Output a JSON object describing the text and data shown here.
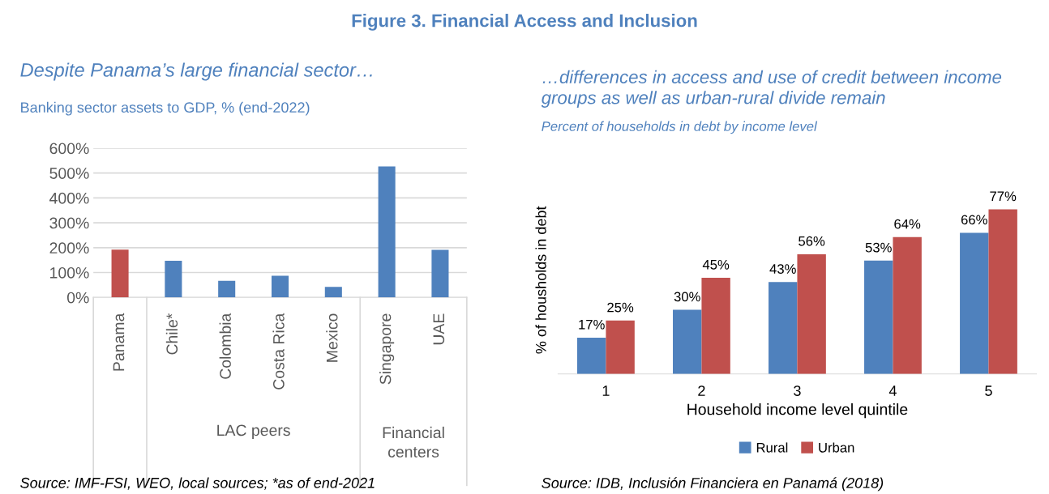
{
  "chart_data": [
    {
      "type": "bar",
      "title": "Despite Panama’s large financial sector…",
      "subtitle": "Banking sector assets to GDP, % (end-2022)",
      "categories": [
        "Panama",
        "Chile*",
        "Colombia",
        "Costa Rica",
        "Mexico",
        "Singapore",
        "UAE"
      ],
      "values": [
        192,
        147,
        67,
        87,
        42,
        527,
        191
      ],
      "colors": [
        "#c0504d",
        "#4f81bd",
        "#4f81bd",
        "#4f81bd",
        "#4f81bd",
        "#4f81bd",
        "#4f81bd"
      ],
      "ylim": [
        0,
        600
      ],
      "yticks": [
        {
          "value": 0,
          "label": "0%"
        },
        {
          "value": 100,
          "label": "100%"
        },
        {
          "value": 200,
          "label": "200%"
        },
        {
          "value": 300,
          "label": "300%"
        },
        {
          "value": 400,
          "label": "400%"
        },
        {
          "value": 500,
          "label": "500%"
        },
        {
          "value": 600,
          "label": "600%"
        }
      ],
      "grid": "y",
      "annotations": [
        "Figure 3. Financial Access and Inclusion",
        "LAC peers",
        "Financial centers",
        "Source: IMF-FSI, WEO, local sources; *as of end-2021"
      ]
    },
    {
      "type": "bar",
      "title": "…differences in access and use of credit between income groups as well as urban-rural divide remain",
      "subtitle": "Percent of households in debt by income level",
      "categories": [
        "1",
        "2",
        "3",
        "4",
        "5"
      ],
      "series": [
        {
          "name": "Rural",
          "color": "#4f81bd",
          "values": [
            17,
            30,
            43,
            53,
            66
          ],
          "value_labels": [
            "17%",
            "30%",
            "43%",
            "53%",
            "66%"
          ]
        },
        {
          "name": "Urban",
          "color": "#c0504d",
          "values": [
            25,
            45,
            56,
            64,
            77
          ],
          "value_labels": [
            "25%",
            "45%",
            "56%",
            "64%",
            "77%"
          ]
        }
      ],
      "ylabel": "% of housholds in debt",
      "xlabel": "Household income level quintile",
      "tick_labels": "x",
      "legend": "bottom",
      "annotations": [
        "Source: IDB, Inclusión Financiera en Panamá (2018)"
      ]
    }
  ]
}
